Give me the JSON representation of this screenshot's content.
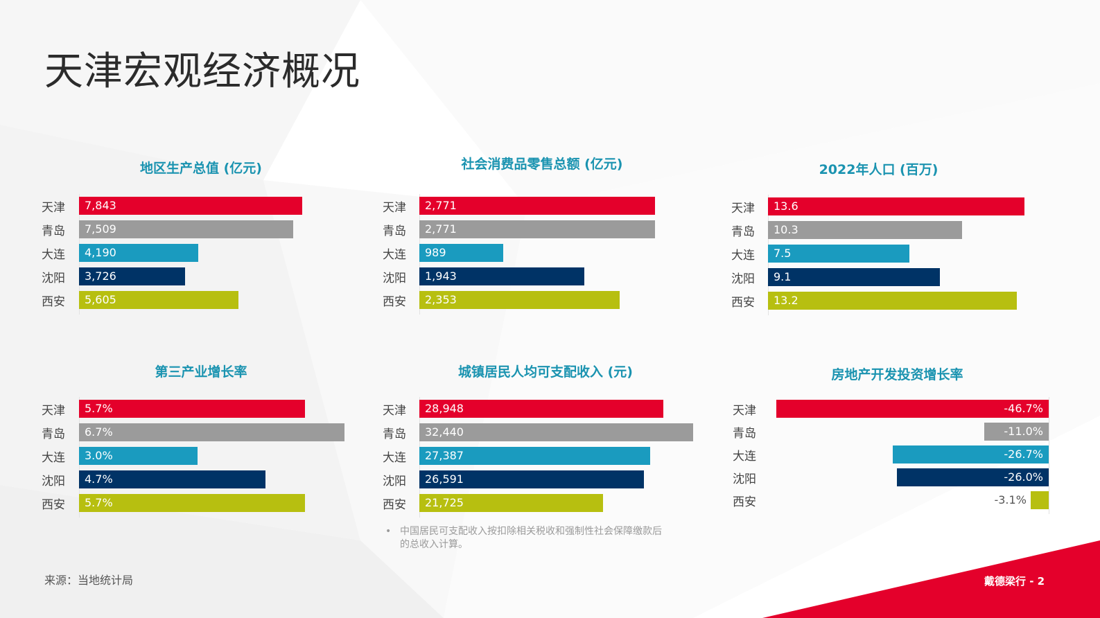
{
  "page": {
    "title": "天津宏观经济概况",
    "footnote_bullet": "•",
    "footnote": "中国居民可支配收入按扣除相关税收和强制性社会保障缴款后的总收入计算。",
    "source": "来源：当地统计局",
    "brand": "戴德梁行 - 2"
  },
  "colors": {
    "天津": "#e4002b",
    "青岛": "#9b9b9b",
    "大连": "#1a9bbf",
    "沈阳": "#003366",
    "西安": "#b7bf10",
    "title": "#1a93b0",
    "accent_red": "#e4002b"
  },
  "chart_data": [
    {
      "type": "bar",
      "orientation": "horizontal",
      "title": "地区生产总值 (亿元)",
      "categories": [
        "天津",
        "青岛",
        "大连",
        "沈阳",
        "西安"
      ],
      "values": [
        7843,
        7509,
        4190,
        3726,
        5605
      ],
      "labels": [
        "7,843",
        "7,509",
        "4,190",
        "3,726",
        "5,605"
      ],
      "xlim": [
        0,
        8200
      ]
    },
    {
      "type": "bar",
      "orientation": "horizontal",
      "title": "社会消费品零售总额 (亿元)",
      "categories": [
        "天津",
        "青岛",
        "大连",
        "沈阳",
        "西安"
      ],
      "values": [
        2771,
        2771,
        989,
        1943,
        2353
      ],
      "labels": [
        "2,771",
        "2,771",
        "989",
        "1,943",
        "2,353"
      ],
      "xlim": [
        0,
        2820
      ]
    },
    {
      "type": "bar",
      "orientation": "horizontal",
      "title": "2022年人口 (百万)",
      "categories": [
        "天津",
        "青岛",
        "大连",
        "沈阳",
        "西安"
      ],
      "values": [
        13.6,
        10.3,
        7.5,
        9.1,
        13.2
      ],
      "labels": [
        "13.6",
        "10.3",
        "7.5",
        "9.1",
        "13.2"
      ],
      "xlim": [
        0,
        14.0
      ]
    },
    {
      "type": "bar",
      "orientation": "horizontal",
      "title": "第三产业增长率",
      "categories": [
        "天津",
        "青岛",
        "大连",
        "沈阳",
        "西安"
      ],
      "values": [
        5.7,
        6.7,
        3.0,
        4.7,
        5.7
      ],
      "labels": [
        "5.7%",
        "6.7%",
        "3.0%",
        "4.7%",
        "5.7%"
      ],
      "xlim": [
        0,
        7.0
      ]
    },
    {
      "type": "bar",
      "orientation": "horizontal",
      "title": "城镇居民人均可支配收入 (元)",
      "categories": [
        "天津",
        "青岛",
        "大连",
        "沈阳",
        "西安"
      ],
      "values": [
        28948,
        32440,
        27387,
        26591,
        21725
      ],
      "labels": [
        "28,948",
        "32,440",
        "27,387",
        "26,591",
        "21,725"
      ],
      "xlim": [
        0,
        34000
      ]
    },
    {
      "type": "bar",
      "orientation": "horizontal",
      "title": "房地产开发投资增长率",
      "categories": [
        "天津",
        "青岛",
        "大连",
        "沈阳",
        "西安"
      ],
      "values": [
        -46.7,
        -11.0,
        -26.7,
        -26.0,
        -3.1
      ],
      "labels": [
        "-46.7%",
        "-11.0%",
        "-26.7%",
        "-26.0%",
        "-3.1%"
      ],
      "xlim": [
        -47.0,
        0
      ]
    }
  ]
}
